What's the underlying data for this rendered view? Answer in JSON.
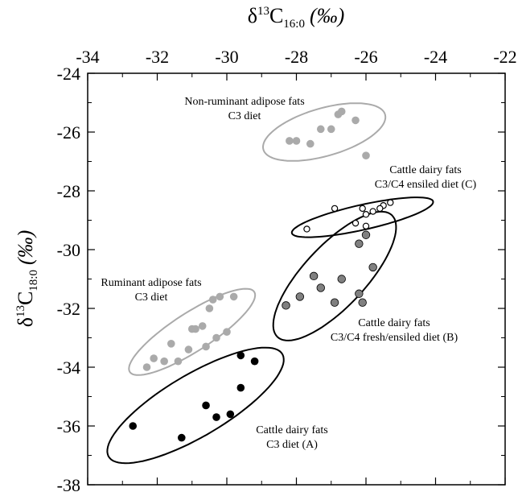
{
  "chart_data": {
    "type": "scatter",
    "x_axis": {
      "label_base": "δ",
      "label_sup": "13",
      "label_main": "C",
      "label_sub": "16:0",
      "label_unit": "(‰)",
      "range": [
        -34,
        -22
      ],
      "ticks": [
        -34,
        -32,
        -30,
        -28,
        -26,
        -24,
        -22
      ],
      "tick_labels": [
        "-34",
        "-32",
        "-30",
        "-28",
        "-26",
        "-24",
        "-22"
      ]
    },
    "y_axis": {
      "label_base": "δ",
      "label_sup": "13",
      "label_main": "C",
      "label_sub": "18:0",
      "label_unit": "(‰)",
      "range": [
        -38,
        -24
      ],
      "ticks": [
        -24,
        -26,
        -28,
        -30,
        -32,
        -34,
        -36,
        -38
      ],
      "tick_labels": [
        "-24",
        "-26",
        "-28",
        "-30",
        "-32",
        "-34",
        "-36",
        "-38"
      ]
    },
    "grid": false,
    "groups": [
      {
        "label_lines": [
          "Non-ruminant adipose fats",
          "C3 diet"
        ],
        "marker_color": "#aaaaaa",
        "marker_fill": "filled",
        "ellipse_color": "#aaaaaa",
        "points": [
          [
            -28.2,
            -26.3
          ],
          [
            -28.0,
            -26.3
          ],
          [
            -27.6,
            -26.4
          ],
          [
            -27.3,
            -25.9
          ],
          [
            -27.0,
            -25.9
          ],
          [
            -26.8,
            -25.4
          ],
          [
            -26.7,
            -25.3
          ],
          [
            -26.3,
            -25.6
          ],
          [
            -26.0,
            -26.8
          ]
        ],
        "ellipse": {
          "center": [
            -27.2,
            -26.0
          ],
          "semi_major": 1.85,
          "semi_minor": 0.8,
          "angle_deg": 20
        }
      },
      {
        "label_lines": [
          "Cattle dairy fats",
          "C3/C4 ensiled diet (C)"
        ],
        "marker_color": "#000000",
        "marker_fill": "hollow",
        "ellipse_color": "#000000",
        "points": [
          [
            -27.7,
            -29.3
          ],
          [
            -26.9,
            -28.6
          ],
          [
            -26.1,
            -28.6
          ],
          [
            -26.0,
            -28.8
          ],
          [
            -25.8,
            -28.7
          ],
          [
            -25.5,
            -28.5
          ],
          [
            -25.3,
            -28.4
          ],
          [
            -26.3,
            -29.1
          ],
          [
            -25.6,
            -28.6
          ],
          [
            -26.0,
            -29.2
          ]
        ],
        "ellipse": {
          "center": [
            -26.1,
            -28.9
          ],
          "semi_major": 2.1,
          "semi_minor": 0.42,
          "angle_deg": 15
        }
      },
      {
        "label_lines": [
          "Cattle dairy fats",
          "C3/C4 fresh/ensiled diet (B)"
        ],
        "marker_color": "#808080",
        "marker_fill": "filled",
        "ellipse_color": "#000000",
        "points": [
          [
            -28.3,
            -31.9
          ],
          [
            -27.9,
            -31.6
          ],
          [
            -27.5,
            -30.9
          ],
          [
            -27.3,
            -31.3
          ],
          [
            -26.9,
            -31.8
          ],
          [
            -26.7,
            -31.0
          ],
          [
            -26.2,
            -29.8
          ],
          [
            -26.0,
            -29.5
          ],
          [
            -25.8,
            -30.6
          ],
          [
            -26.1,
            -31.8
          ],
          [
            -26.2,
            -31.5
          ]
        ],
        "ellipse": {
          "center": [
            -26.9,
            -30.9
          ],
          "semi_major": 2.65,
          "semi_minor": 0.95,
          "angle_deg": 53
        }
      },
      {
        "label_lines": [
          "Ruminant adipose fats",
          "C3 diet"
        ],
        "marker_color": "#aaaaaa",
        "marker_fill": "filled",
        "ellipse_color": "#aaaaaa",
        "points": [
          [
            -32.3,
            -34.0
          ],
          [
            -32.1,
            -33.7
          ],
          [
            -31.8,
            -33.8
          ],
          [
            -31.6,
            -33.2
          ],
          [
            -31.4,
            -33.8
          ],
          [
            -31.1,
            -33.4
          ],
          [
            -31.0,
            -32.7
          ],
          [
            -30.9,
            -32.7
          ],
          [
            -30.7,
            -32.6
          ],
          [
            -30.5,
            -32.0
          ],
          [
            -30.4,
            -31.7
          ],
          [
            -30.2,
            -31.6
          ],
          [
            -30.0,
            -32.8
          ],
          [
            -29.8,
            -31.6
          ],
          [
            -30.3,
            -33.0
          ],
          [
            -30.6,
            -33.3
          ]
        ],
        "ellipse": {
          "center": [
            -31.0,
            -32.8
          ],
          "semi_major": 2.25,
          "semi_minor": 0.62,
          "angle_deg": 38
        }
      },
      {
        "label_lines": [
          "Cattle dairy fats",
          "C3 diet (A)"
        ],
        "marker_color": "#000000",
        "marker_fill": "filled",
        "ellipse_color": "#000000",
        "points": [
          [
            -32.7,
            -36.0
          ],
          [
            -31.3,
            -36.4
          ],
          [
            -30.6,
            -35.3
          ],
          [
            -30.3,
            -35.7
          ],
          [
            -29.6,
            -33.6
          ],
          [
            -29.9,
            -35.6
          ],
          [
            -29.6,
            -34.7
          ],
          [
            -29.2,
            -33.8
          ]
        ],
        "ellipse": {
          "center": [
            -30.9,
            -35.3
          ],
          "semi_major": 3.05,
          "semi_minor": 1.0,
          "angle_deg": 36
        }
      }
    ]
  }
}
